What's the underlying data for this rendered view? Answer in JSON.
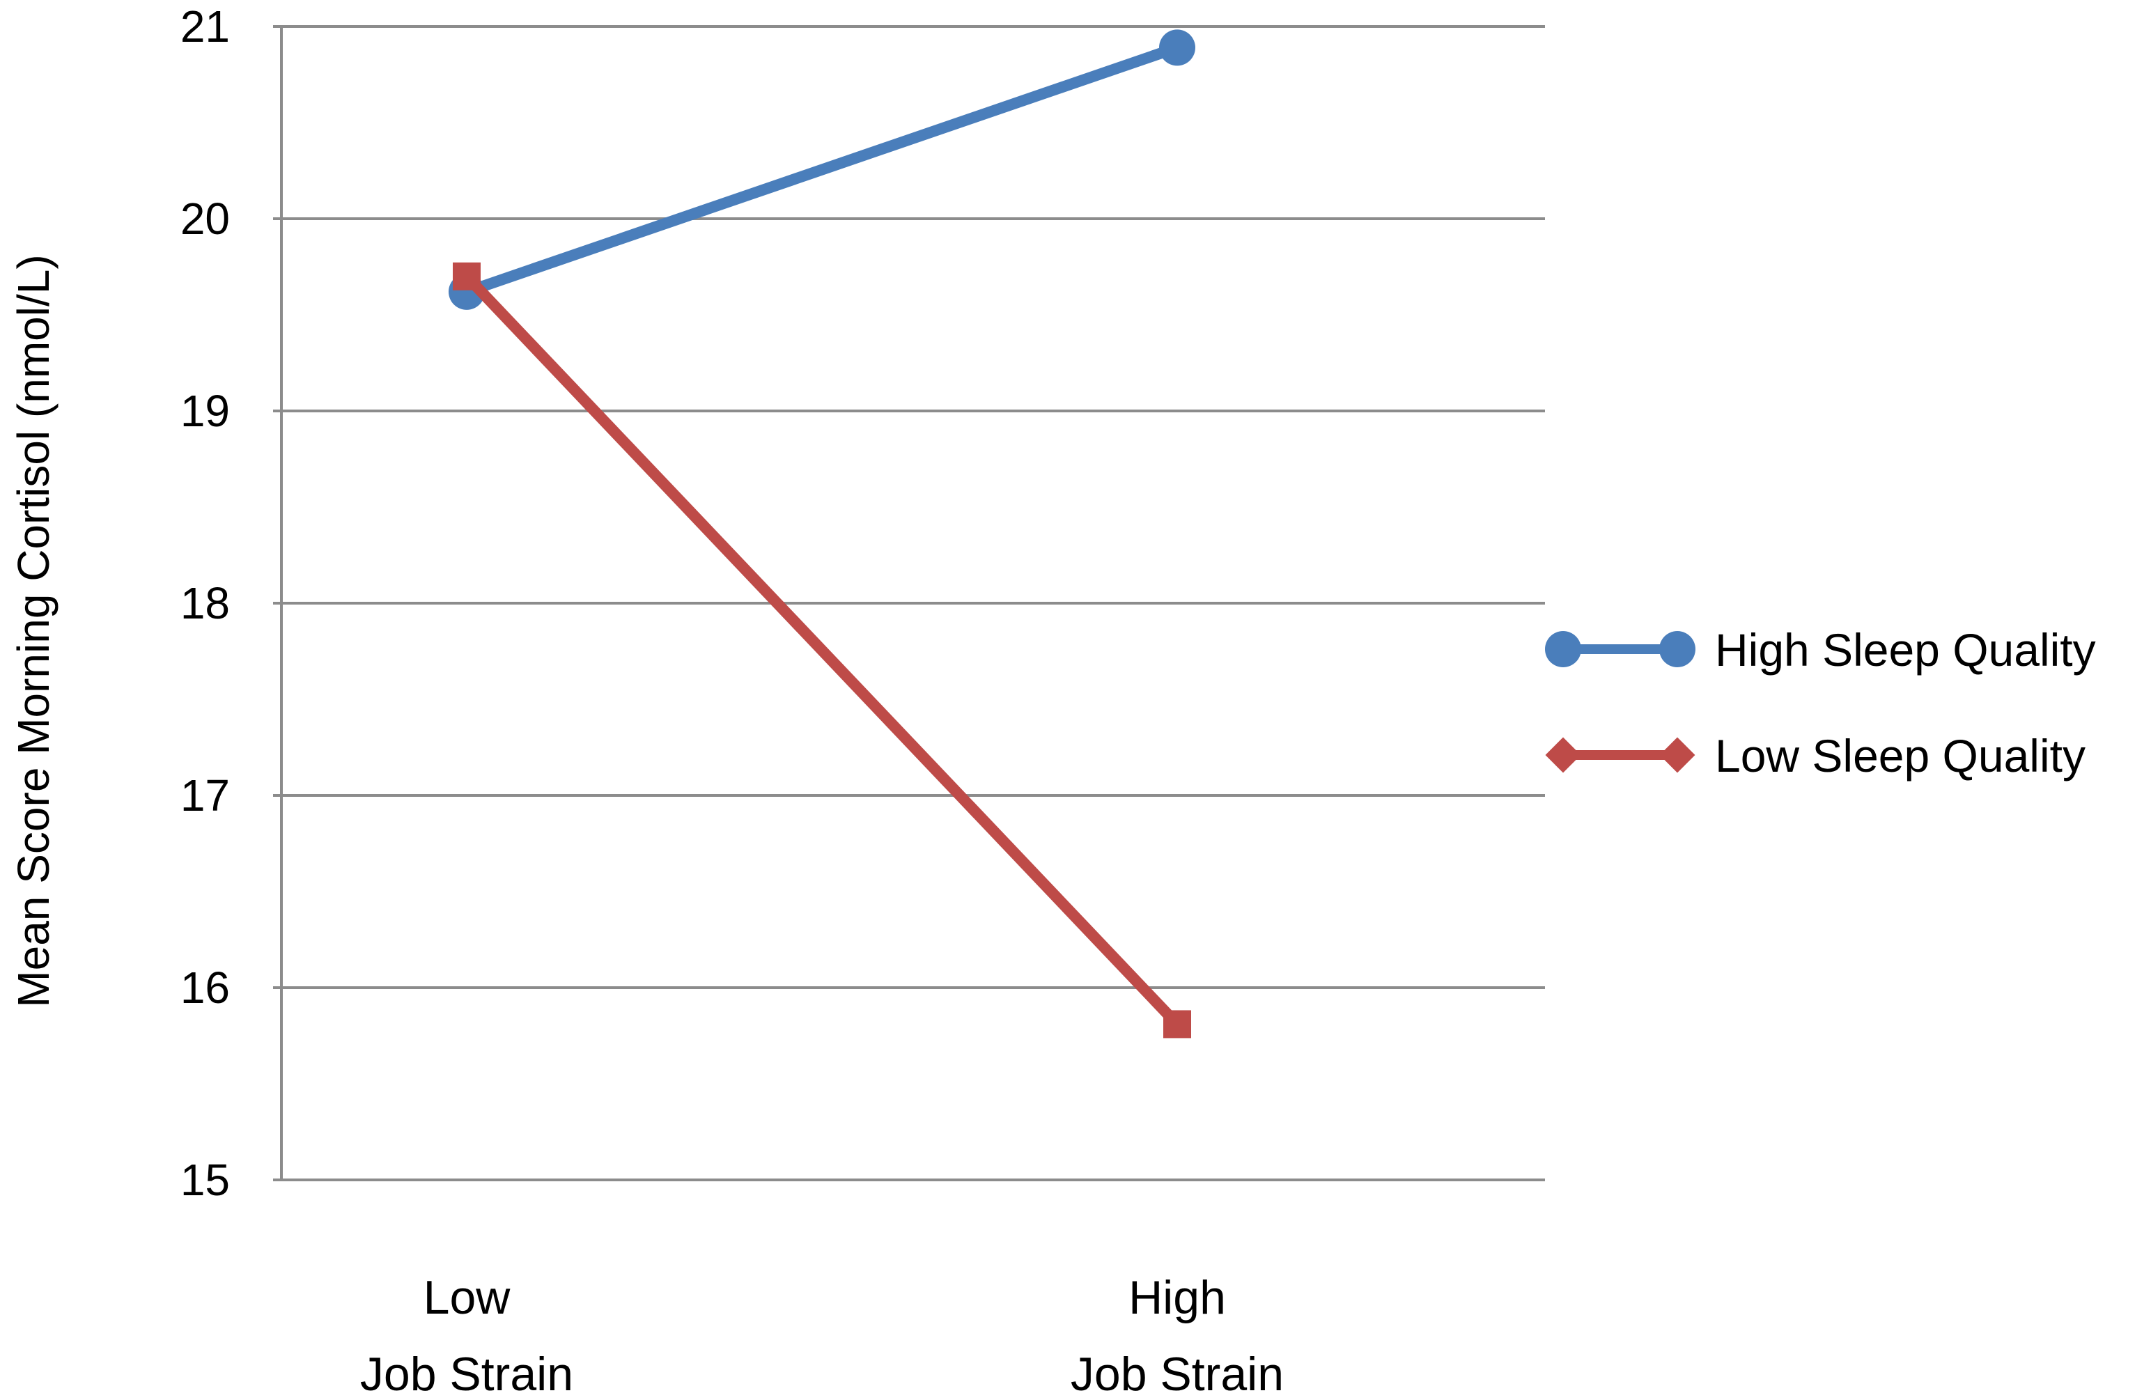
{
  "chart_data": {
    "type": "line",
    "title": "",
    "xlabel": "",
    "ylabel": "Mean Score Morning Cortisol (nmol/L)",
    "ylim": [
      15,
      21
    ],
    "yticks": [
      "15",
      "16",
      "17",
      "18",
      "19",
      "20",
      "21"
    ],
    "grid": true,
    "legend_position": "right",
    "categories": [
      {
        "line1": "Low",
        "line2": "Job Strain"
      },
      {
        "line1": "High",
        "line2": "Job Strain"
      }
    ],
    "series": [
      {
        "name": "High Sleep Quality",
        "values": [
          19.62,
          20.89
        ],
        "color": "#4a7ebb",
        "marker": "circle"
      },
      {
        "name": "Low Sleep Quality",
        "values": [
          19.7,
          15.81
        ],
        "color": "#be4b48",
        "marker": "square"
      }
    ]
  }
}
